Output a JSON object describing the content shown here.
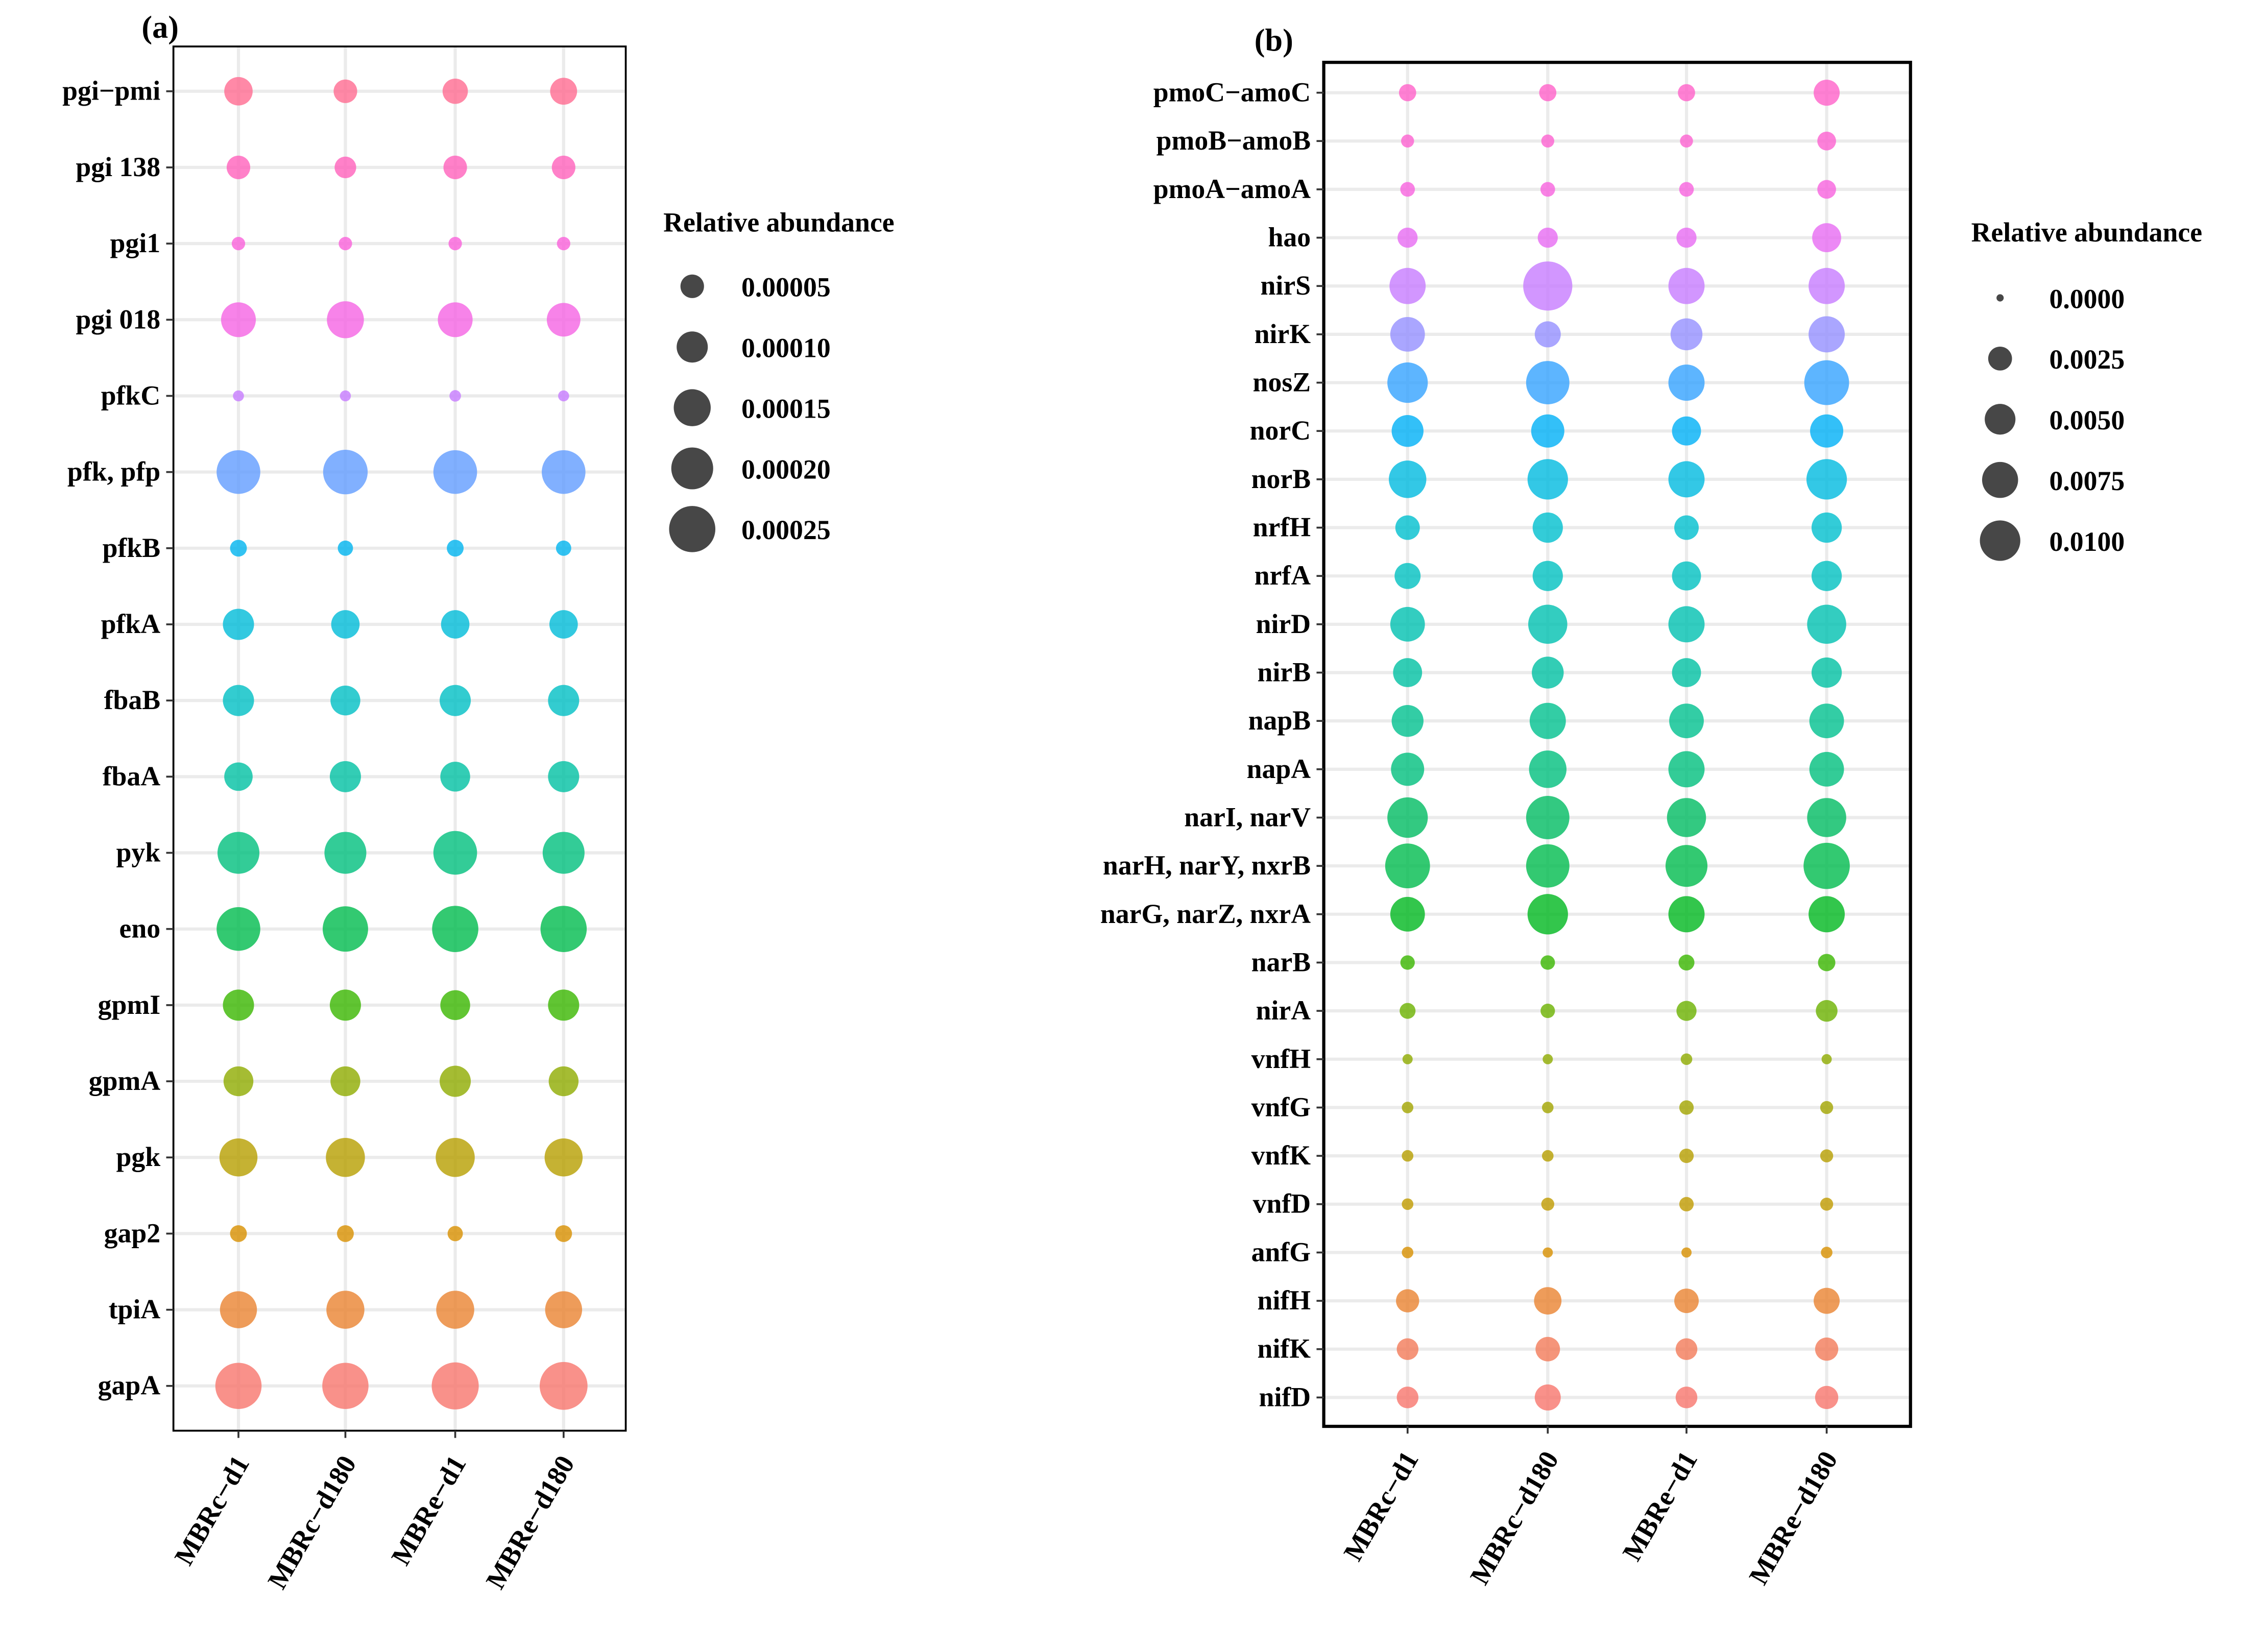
{
  "chart_data": [
    {
      "type": "scatter",
      "panel_label": "(a)",
      "x": [
        "MBRc−d1",
        "MBRc−d180",
        "MBRe−d1",
        "MBRe−d180"
      ],
      "y": [
        "pgi−pmi",
        "pgi 138",
        "pgi1",
        "pgi 018",
        "pfkC",
        "pfk, pfp",
        "pfkB",
        "pfkA",
        "fbaB",
        "fbaA",
        "pyk",
        "eno",
        "gpmI",
        "gpmA",
        "pgk",
        "gap2",
        "tpiA",
        "gapA"
      ],
      "colors": [
        "#FF6C91",
        "#FF62BC",
        "#FA62DB",
        "#F564E3",
        "#C77CFF",
        "#619CFF",
        "#00B4EF",
        "#00BCD8",
        "#00BFC4",
        "#00C1A3",
        "#00BF7D",
        "#00BB4E",
        "#39B600",
        "#8EAB00",
        "#B79F00",
        "#D89000",
        "#EA8331",
        "#F8766D"
      ],
      "values": [
        [
          8e-05,
          5e-05,
          6e-05,
          7e-05
        ],
        [
          5e-05,
          4e-05,
          5e-05,
          5e-05
        ],
        [
          1e-05,
          1e-05,
          1e-05,
          1e-05
        ],
        [
          0.00013,
          0.00015,
          0.00013,
          0.00012
        ],
        [
          5e-06,
          5e-06,
          6e-06,
          5e-06
        ],
        [
          0.00022,
          0.00023,
          0.00022,
          0.00022
        ],
        [
          2e-05,
          1.5e-05,
          2e-05,
          1.5e-05
        ],
        [
          0.0001,
          8e-05,
          8e-05,
          8e-05
        ],
        [
          0.0001,
          9e-05,
          0.0001,
          0.0001
        ],
        [
          8e-05,
          0.0001,
          9e-05,
          0.0001
        ],
        [
          0.0002,
          0.0002,
          0.00022,
          0.0002
        ],
        [
          0.00022,
          0.00024,
          0.00025,
          0.00025
        ],
        [
          0.0001,
          0.0001,
          9e-05,
          0.0001
        ],
        [
          9e-05,
          9e-05,
          0.0001,
          9e-05
        ],
        [
          0.00016,
          0.00017,
          0.00017,
          0.00016
        ],
        [
          2e-05,
          2e-05,
          1.5e-05,
          2e-05
        ],
        [
          0.00015,
          0.00016,
          0.00016,
          0.00015
        ],
        [
          0.00025,
          0.00025,
          0.00026,
          0.00027
        ]
      ],
      "legend": {
        "title": "Relative abundance",
        "values": [
          5e-05,
          0.0001,
          0.00015,
          0.0002,
          0.00025
        ],
        "labels": [
          "0.00005",
          "0.00010",
          "0.00015",
          "0.00020",
          "0.00025"
        ]
      },
      "size_max": 0.00025,
      "grid": true
    },
    {
      "type": "scatter",
      "panel_label": "(b)",
      "x": [
        "MBRc−d1",
        "MBRc−d180",
        "MBRe−d1",
        "MBRe−d180"
      ],
      "y": [
        "pmoC−amoC",
        "pmoB−amoB",
        "pmoA−amoA",
        "hao",
        "nirS",
        "nirK",
        "nosZ",
        "norC",
        "norB",
        "nrfH",
        "nrfA",
        "nirD",
        "nirB",
        "napB",
        "napA",
        "narI, narV",
        "narH, narY, nxrB",
        "narG, narZ, nxrA",
        "narB",
        "nirA",
        "vnfH",
        "vnfG",
        "vnfK",
        "vnfD",
        "anfG",
        "nifH",
        "nifK",
        "nifD"
      ],
      "colors": [
        "#FF61C9",
        "#FD61D1",
        "#F863DF",
        "#E76BF3",
        "#C77CFF",
        "#9590FF",
        "#35A2FF",
        "#00B0F6",
        "#00BAE0",
        "#00BFCE",
        "#00C1C0",
        "#00C1B0",
        "#00C1A3",
        "#00C08F",
        "#00BF7D",
        "#00BC62",
        "#00BB4E",
        "#00B81F",
        "#39B600",
        "#6BB100",
        "#8EAB00",
        "#A3A500",
        "#B79F00",
        "#C09B00",
        "#D89000",
        "#EA8331",
        "#F37B59",
        "#F8766D"
      ],
      "values": [
        [
          0.0009,
          0.0009,
          0.0009,
          0.0032
        ],
        [
          0.0003,
          0.0003,
          0.0003,
          0.0012
        ],
        [
          0.0005,
          0.0005,
          0.0005,
          0.0012
        ],
        [
          0.0015,
          0.0015,
          0.0015,
          0.0043
        ],
        [
          0.0076,
          0.0159,
          0.0076,
          0.0076
        ],
        [
          0.0068,
          0.0032,
          0.0055,
          0.0076
        ],
        [
          0.01,
          0.0118,
          0.0076,
          0.0128
        ],
        [
          0.0055,
          0.0061,
          0.0043,
          0.0061
        ],
        [
          0.0083,
          0.01,
          0.0076,
          0.01
        ],
        [
          0.0027,
          0.0048,
          0.0027,
          0.0048
        ],
        [
          0.0032,
          0.0048,
          0.0043,
          0.0048
        ],
        [
          0.0068,
          0.0092,
          0.0076,
          0.0092
        ],
        [
          0.0043,
          0.0055,
          0.0043,
          0.0048
        ],
        [
          0.0055,
          0.0076,
          0.0068,
          0.0068
        ],
        [
          0.0061,
          0.0083,
          0.0076,
          0.0068
        ],
        [
          0.01,
          0.0118,
          0.0092,
          0.0092
        ],
        [
          0.0128,
          0.0118,
          0.0109,
          0.0138
        ],
        [
          0.0068,
          0.01,
          0.0076,
          0.0076
        ],
        [
          0.00047,
          0.00047,
          0.00068,
          0.00093
        ],
        [
          0.00068,
          0.00047,
          0.0015,
          0.0019
        ],
        [
          8e-05,
          8e-05,
          0.00017,
          8e-05
        ],
        [
          0.00017,
          0.00017,
          0.00047,
          0.0003
        ],
        [
          0.00017,
          0.00017,
          0.00047,
          0.0003
        ],
        [
          0.00017,
          0.0003,
          0.00047,
          0.0003
        ],
        [
          0.00017,
          8e-05,
          8e-05,
          0.00017
        ],
        [
          0.0023,
          0.0037,
          0.0027,
          0.0032
        ],
        [
          0.0019,
          0.0027,
          0.0019,
          0.0023
        ],
        [
          0.0019,
          0.0032,
          0.0019,
          0.0023
        ]
      ],
      "legend": {
        "title": "Relative abundance",
        "values": [
          0.0,
          0.0025,
          0.005,
          0.0075,
          0.01
        ],
        "labels": [
          "0.0000",
          "0.0025",
          "0.0050",
          "0.0075",
          "0.0100"
        ]
      },
      "size_max": 0.01,
      "grid": true
    }
  ]
}
